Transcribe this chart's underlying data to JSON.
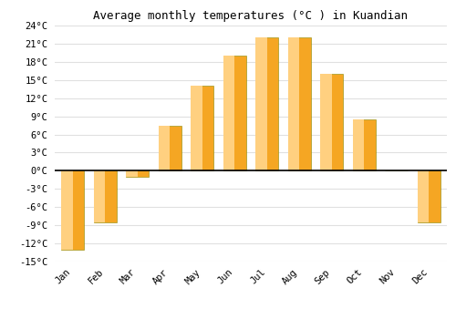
{
  "months": [
    "Jan",
    "Feb",
    "Mar",
    "Apr",
    "May",
    "Jun",
    "Jul",
    "Aug",
    "Sep",
    "Oct",
    "Nov",
    "Dec"
  ],
  "temperatures": [
    -13,
    -8.5,
    -1,
    7.5,
    14,
    19,
    22,
    22,
    16,
    8.5,
    0,
    -8.5
  ],
  "bar_color_dark": "#F5A623",
  "bar_color_light": "#FFD080",
  "bar_edge_color": "#888800",
  "title": "Average monthly temperatures (°C ) in Kuandian",
  "ylim": [
    -15,
    24
  ],
  "yticks": [
    -15,
    -12,
    -9,
    -6,
    -3,
    0,
    3,
    6,
    9,
    12,
    15,
    18,
    21,
    24
  ],
  "ytick_labels": [
    "-15°C",
    "-12°C",
    "-9°C",
    "-6°C",
    "-3°C",
    "0°C",
    "3°C",
    "6°C",
    "9°C",
    "12°C",
    "15°C",
    "18°C",
    "21°C",
    "24°C"
  ],
  "background_color": "#ffffff",
  "grid_color": "#e0e0e0",
  "zero_line_color": "#000000",
  "title_fontsize": 9,
  "tick_fontsize": 7.5,
  "bar_width": 0.7
}
